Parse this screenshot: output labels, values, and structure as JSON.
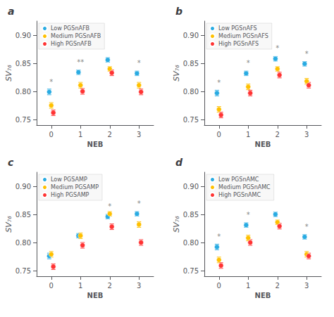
{
  "chart_data": [
    {
      "type": "scatter",
      "title": "a",
      "x": [
        0,
        1,
        2,
        3
      ],
      "series": [
        {
          "name": "Low PGSnAFB",
          "color": "#29ABE2",
          "values": [
            0.799,
            0.834,
            0.856,
            0.832
          ],
          "errors": [
            0.005,
            0.004,
            0.004,
            0.004
          ]
        },
        {
          "name": "Medium PGSnAFB",
          "color": "#FFC000",
          "values": [
            0.775,
            0.811,
            0.84,
            0.811
          ],
          "errors": [
            0.005,
            0.005,
            0.004,
            0.005
          ]
        },
        {
          "name": "High PGSnAFB",
          "color": "#FF3333",
          "values": [
            0.762,
            0.8,
            0.833,
            0.799
          ],
          "errors": [
            0.005,
            0.005,
            0.005,
            0.005
          ]
        }
      ],
      "annotations": [
        {
          "x": 0,
          "y": 0.81,
          "text": "*"
        },
        {
          "x": 1,
          "y": 0.845,
          "text": "**"
        },
        {
          "x": 3,
          "y": 0.843,
          "text": "*"
        }
      ],
      "xlabel": "NEB",
      "ylabel": "SV₇₆",
      "xlim": [
        -0.5,
        3.5
      ],
      "xticks": [
        0,
        1,
        2,
        3
      ],
      "ylim": [
        0.74,
        0.925
      ],
      "yticks": [
        0.75,
        {
          "value": 0.8,
          "label": "0.80"
        },
        0.85,
        {
          "value": 0.9,
          "label": "0.90"
        }
      ],
      "grid": false,
      "legend": "upper left"
    },
    {
      "type": "scatter",
      "title": "b",
      "x": [
        0,
        1,
        2,
        3
      ],
      "series": [
        {
          "name": "Low PGSnAFS",
          "color": "#29ABE2",
          "values": [
            0.797,
            0.832,
            0.858,
            0.849
          ],
          "errors": [
            0.005,
            0.004,
            0.004,
            0.004
          ]
        },
        {
          "name": "Medium PGSnAFS",
          "color": "#FFC000",
          "values": [
            0.768,
            0.808,
            0.84,
            0.818
          ],
          "errors": [
            0.005,
            0.005,
            0.004,
            0.005
          ]
        },
        {
          "name": "High PGSnAFS",
          "color": "#FF3333",
          "values": [
            0.758,
            0.797,
            0.829,
            0.811
          ],
          "errors": [
            0.005,
            0.005,
            0.005,
            0.005
          ]
        }
      ],
      "annotations": [
        {
          "x": 0,
          "y": 0.808,
          "text": "*"
        },
        {
          "x": 1,
          "y": 0.843,
          "text": "*"
        },
        {
          "x": 2,
          "y": 0.869,
          "text": "*"
        },
        {
          "x": 3,
          "y": 0.86,
          "text": "*"
        }
      ],
      "xlabel": "NEB",
      "ylabel": "SV₇₆",
      "xlim": [
        -0.5,
        3.5
      ],
      "xticks": [
        0,
        1,
        2,
        3
      ],
      "ylim": [
        0.74,
        0.925
      ],
      "yticks": [
        0.75,
        {
          "value": 0.8,
          "label": "0.80"
        },
        0.85,
        {
          "value": 0.9,
          "label": "0.90"
        }
      ],
      "grid": false,
      "legend": "upper left"
    },
    {
      "type": "scatter",
      "title": "c",
      "x": [
        0,
        1,
        2,
        3
      ],
      "series": [
        {
          "name": "Low PGSAMP",
          "color": "#29ABE2",
          "values": [
            0.776,
            0.812,
            0.846,
            0.851
          ],
          "errors": [
            0.005,
            0.004,
            0.004,
            0.004
          ]
        },
        {
          "name": "Medium PGSAMP",
          "color": "#FFC000",
          "values": [
            0.779,
            0.812,
            0.851,
            0.832
          ],
          "errors": [
            0.005,
            0.005,
            0.004,
            0.005
          ]
        },
        {
          "name": "High PGSAMP",
          "color": "#FF3333",
          "values": [
            0.757,
            0.795,
            0.828,
            0.8
          ],
          "errors": [
            0.005,
            0.005,
            0.005,
            0.005
          ]
        }
      ],
      "annotations": [
        {
          "x": 2,
          "y": 0.857,
          "text": "*"
        },
        {
          "x": 3,
          "y": 0.862,
          "text": "*"
        }
      ],
      "xlabel": "NEB",
      "ylabel": "SV₇₆",
      "xlim": [
        -0.5,
        3.5
      ],
      "xticks": [
        0,
        1,
        2,
        3
      ],
      "ylim": [
        0.74,
        0.925
      ],
      "yticks": [
        0.75,
        {
          "value": 0.8,
          "label": "0.80"
        },
        0.85,
        {
          "value": 0.9,
          "label": "0.90"
        }
      ],
      "grid": false,
      "legend": "upper left"
    },
    {
      "type": "scatter",
      "title": "d",
      "x": [
        0,
        1,
        2,
        3
      ],
      "series": [
        {
          "name": "Low PGSnAMC",
          "color": "#29ABE2",
          "values": [
            0.792,
            0.831,
            0.85,
            0.81
          ],
          "errors": [
            0.005,
            0.004,
            0.004,
            0.004
          ]
        },
        {
          "name": "Medium PGSnAMC",
          "color": "#FFC000",
          "values": [
            0.769,
            0.808,
            0.836,
            0.779
          ],
          "errors": [
            0.005,
            0.005,
            0.004,
            0.005
          ]
        },
        {
          "name": "High PGSnAMC",
          "color": "#FF3333",
          "values": [
            0.759,
            0.8,
            0.829,
            0.776
          ],
          "errors": [
            0.005,
            0.005,
            0.005,
            0.005
          ]
        }
      ],
      "annotations": [
        {
          "x": 0,
          "y": 0.803,
          "text": "*"
        },
        {
          "x": 1,
          "y": 0.842,
          "text": "*"
        },
        {
          "x": 3,
          "y": 0.821,
          "text": "*"
        }
      ],
      "xlabel": "NEB",
      "ylabel": "SV₇₆",
      "xlim": [
        -0.5,
        3.5
      ],
      "xticks": [
        0,
        1,
        2,
        3
      ],
      "ylim": [
        0.74,
        0.925
      ],
      "yticks": [
        0.75,
        {
          "value": 0.8,
          "label": "0.80"
        },
        0.85,
        {
          "value": 0.9,
          "label": "0.90"
        }
      ],
      "grid": false,
      "legend": "upper left"
    }
  ]
}
